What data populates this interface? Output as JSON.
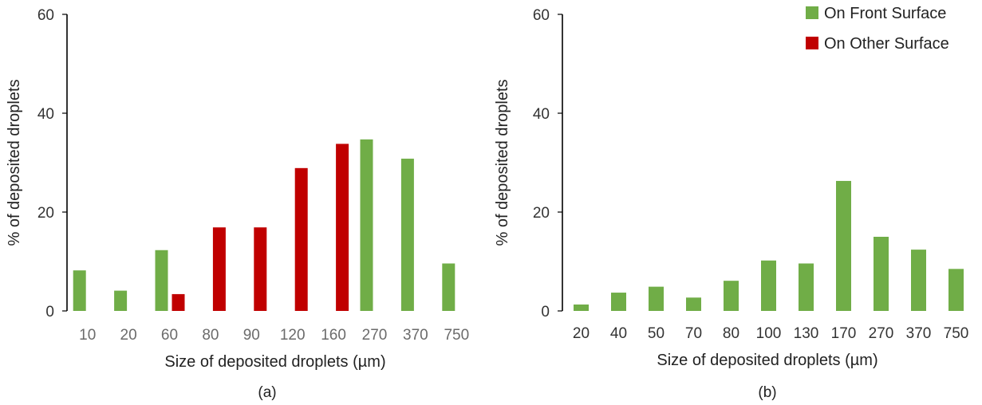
{
  "colors": {
    "front": "#70ad47",
    "other": "#c00000"
  },
  "legend": [
    {
      "label": "On Front Surface",
      "color": "#70ad47"
    },
    {
      "label": "On Other Surface",
      "color": "#c00000"
    }
  ],
  "chart_data": [
    {
      "type": "bar",
      "caption": "(a)",
      "xlabel": "Size of deposited droplets (µm)",
      "ylabel": "% of deposited droplets",
      "ylim": [
        0,
        60
      ],
      "yticks": [
        0,
        20,
        40,
        60
      ],
      "categories": [
        "10",
        "20",
        "60",
        "80",
        "90",
        "120",
        "160",
        "270",
        "370",
        "750"
      ],
      "series": [
        {
          "name": "On Front Surface",
          "color": "#70ad47",
          "values": [
            8.2,
            4.1,
            12.3,
            null,
            null,
            null,
            null,
            34.7,
            30.8,
            9.6
          ]
        },
        {
          "name": "On Other Surface",
          "color": "#c00000",
          "values": [
            null,
            null,
            3.4,
            16.9,
            16.9,
            28.9,
            33.8,
            null,
            null,
            null
          ]
        }
      ],
      "grid": false
    },
    {
      "type": "bar",
      "caption": "(b)",
      "xlabel": "Size of deposited droplets (µm)",
      "ylabel": "% of deposited droplets",
      "ylim": [
        0,
        60
      ],
      "yticks": [
        0,
        20,
        40,
        60
      ],
      "categories": [
        "20",
        "40",
        "50",
        "70",
        "80",
        "100",
        "130",
        "170",
        "270",
        "370",
        "750"
      ],
      "series": [
        {
          "name": "On Front Surface",
          "color": "#70ad47",
          "values": [
            1.3,
            3.7,
            4.9,
            2.7,
            6.1,
            10.2,
            9.6,
            26.3,
            15.0,
            12.4,
            8.5
          ]
        }
      ],
      "grid": false
    }
  ]
}
